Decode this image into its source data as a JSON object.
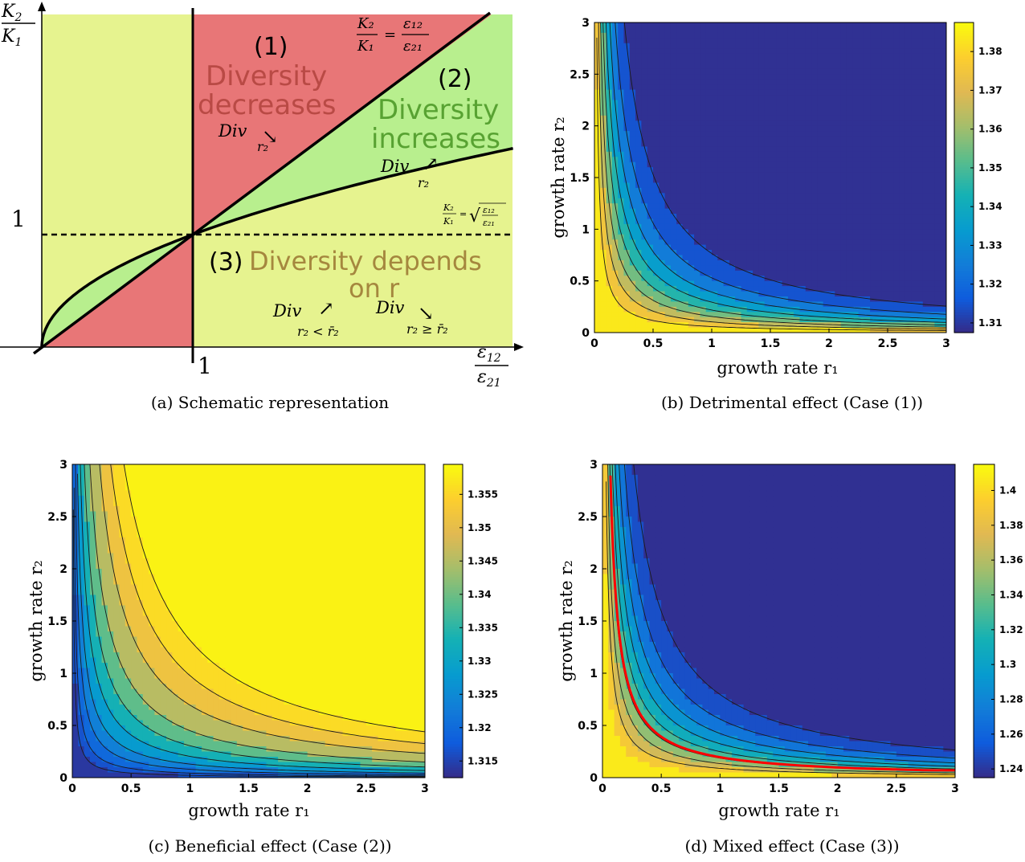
{
  "chart_data": [
    {
      "id": "a",
      "type": "diagram",
      "caption": "(a) Schematic representation",
      "y_axis_label": {
        "num": "K",
        "num_sub": "2",
        "den": "K",
        "den_sub": "1"
      },
      "x_axis_label": {
        "num": "ε",
        "num_sub": "12",
        "den": "ε",
        "den_sub": "21"
      },
      "tick_one_x": "1",
      "tick_one_y": "1",
      "line_label_diag": {
        "lhs_num": "K₂",
        "lhs_den": "K₁",
        "eq": "=",
        "rhs_num": "ε₁₂",
        "rhs_den": "ε₂₁"
      },
      "line_label_sqrt": {
        "lhs_num": "K₂",
        "lhs_den": "K₁",
        "eq": "=",
        "sqrt": "√",
        "rhs_num": "ε₁₂",
        "rhs_den": "ε₂₁"
      },
      "regions": [
        {
          "number": "(1)",
          "text_lines": [
            "Diversity",
            "decreases"
          ],
          "color": "#b94a45",
          "div": "Div",
          "arrow": "↘",
          "sub": "r₂"
        },
        {
          "number": "(2)",
          "text_lines": [
            "Diversity",
            "increases"
          ],
          "color": "#58a232",
          "div": "Div",
          "arrow": "↗",
          "sub": "r₂"
        },
        {
          "number": "(3)",
          "text_lines": [
            "Diversity depends",
            "on r"
          ],
          "color": "#a5873e",
          "div_left": "Div",
          "arrow_left": "↗",
          "sub_left": "r₂ < r̄₂",
          "div_right": "Div",
          "arrow_right": "↘",
          "sub_right": "r₂ ≥ r̄₂"
        }
      ],
      "colors": {
        "red": "#e87677",
        "green": "#b8ef8e",
        "yellow": "#e6f38f"
      }
    },
    {
      "id": "b",
      "type": "heatmap",
      "caption": "(b) Detrimental effect (Case (1))",
      "xlabel": "growth rate r₁",
      "ylabel": "growth rate r₂",
      "x_ticks": [
        "0",
        "0.5",
        "1",
        "1.5",
        "2",
        "2.5",
        "3"
      ],
      "y_ticks": [
        "0",
        "0.5",
        "1",
        "1.5",
        "2",
        "2.5",
        "3"
      ],
      "xlim": [
        0,
        3
      ],
      "ylim": [
        0,
        3
      ],
      "colorbar": {
        "range": [
          1.3075,
          1.3875
        ],
        "ticks": [
          "1.31",
          "1.32",
          "1.33",
          "1.34",
          "1.35",
          "1.36",
          "1.37",
          "1.38"
        ]
      },
      "contour_levels": [
        1.31,
        1.32,
        1.33,
        1.34,
        1.35,
        1.36,
        1.37,
        1.38
      ],
      "field": {
        "kind": "decreasing",
        "low": 1.3,
        "high": 1.395,
        "k": 0.34
      }
    },
    {
      "id": "c",
      "type": "heatmap",
      "caption": "(c) Beneficial effect (Case (2))",
      "xlabel": "growth rate r₁",
      "ylabel": "growth rate r₂",
      "x_ticks": [
        "0",
        "0.5",
        "1",
        "1.5",
        "2",
        "2.5",
        "3"
      ],
      "y_ticks": [
        "0",
        "0.5",
        "1",
        "1.5",
        "2",
        "2.5",
        "3"
      ],
      "xlim": [
        0,
        3
      ],
      "ylim": [
        0,
        3
      ],
      "colorbar": {
        "range": [
          1.3125,
          1.3595
        ],
        "ticks": [
          "1.315",
          "1.32",
          "1.325",
          "1.33",
          "1.335",
          "1.34",
          "1.345",
          "1.35",
          "1.355"
        ]
      },
      "contour_levels": [
        1.3155,
        1.318,
        1.3215,
        1.3255,
        1.3305,
        1.336,
        1.342,
        1.349,
        1.354,
        1.3575
      ],
      "field": {
        "kind": "increasing",
        "low": 1.312,
        "high": 1.362,
        "k": 0.6
      }
    },
    {
      "id": "d",
      "type": "heatmap",
      "caption": "(d) Mixed effect (Case (3))",
      "xlabel": "growth rate r₁",
      "ylabel": "growth rate r₂",
      "x_ticks": [
        "0",
        "0.5",
        "1",
        "1.5",
        "2",
        "2.5",
        "3"
      ],
      "y_ticks": [
        "0",
        "0.5",
        "1",
        "1.5",
        "2",
        "2.5",
        "3"
      ],
      "xlim": [
        0,
        3
      ],
      "ylim": [
        0,
        3
      ],
      "colorbar": {
        "range": [
          1.235,
          1.415
        ],
        "ticks": [
          "1.24",
          "1.26",
          "1.28",
          "1.3",
          "1.32",
          "1.34",
          "1.36",
          "1.38",
          "1.4"
        ]
      },
      "contour_levels": [
        1.24,
        1.26,
        1.28,
        1.3,
        1.32,
        1.34,
        1.36,
        1.38,
        1.4
      ],
      "field": {
        "kind": "mixed",
        "low": 1.22,
        "high": 1.42,
        "k": 0.34
      },
      "red_curve": {
        "product": 0.0135,
        "color": "#ff0000"
      }
    }
  ]
}
